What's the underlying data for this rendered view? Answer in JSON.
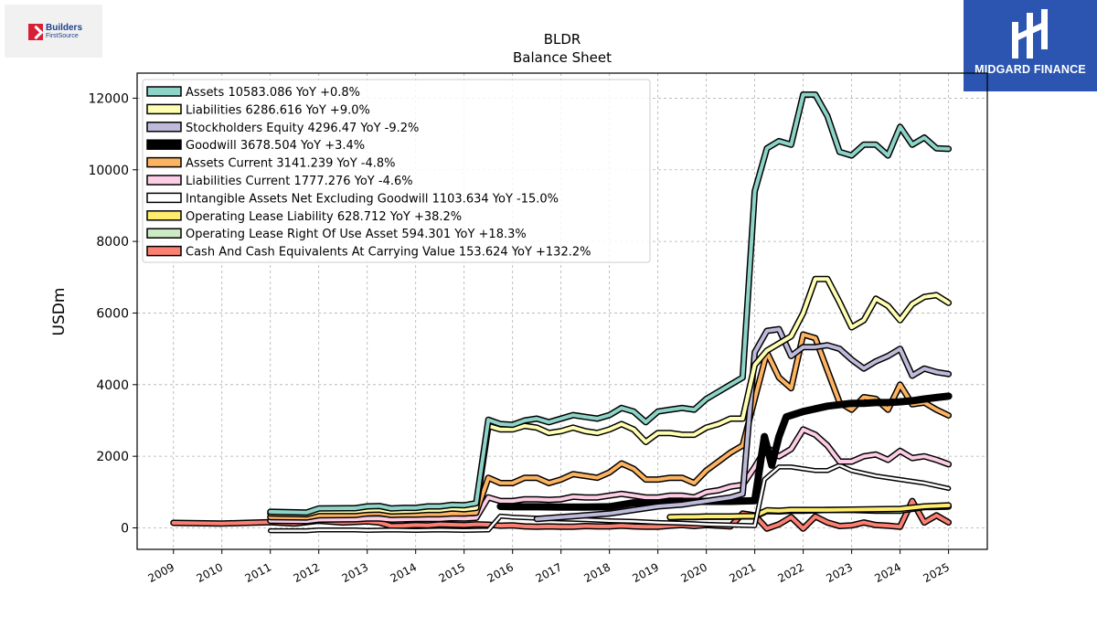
{
  "logos": {
    "left_line1": "Builders",
    "left_line2": "FirstSource",
    "right_brand": "MIDGARD FINANCE"
  },
  "chart_data": {
    "type": "line",
    "title": "BLDR",
    "subtitle": "Balance  Sheet",
    "xlabel": "",
    "ylabel": "USDm",
    "xlim": [
      2008.25,
      2025.8
    ],
    "ylim": [
      -600,
      12700
    ],
    "x_ticks": [
      "2009",
      "2010",
      "2011",
      "2012",
      "2013",
      "2014",
      "2015",
      "2016",
      "2017",
      "2018",
      "2019",
      "2020",
      "2021",
      "2022",
      "2023",
      "2024",
      "2025"
    ],
    "y_ticks": [
      "0",
      "2000",
      "4000",
      "6000",
      "8000",
      "10000",
      "12000"
    ],
    "grid": true,
    "legend_position": "top-left",
    "series": [
      {
        "name": "Assets",
        "label": "Assets  10583.086 YoY +0.8%",
        "color": "#8dd3c7",
        "width": 4,
        "x": [
          2011.0,
          2011.75,
          2012.0,
          2012.75,
          2013.0,
          2013.25,
          2013.5,
          2013.75,
          2014.0,
          2014.25,
          2014.5,
          2014.75,
          2015.0,
          2015.25,
          2015.5,
          2015.75,
          2016.0,
          2016.25,
          2016.5,
          2016.75,
          2017.0,
          2017.25,
          2017.5,
          2017.75,
          2018.0,
          2018.25,
          2018.5,
          2018.75,
          2019.0,
          2019.25,
          2019.5,
          2019.75,
          2020.0,
          2020.25,
          2020.5,
          2020.75,
          2021.0,
          2021.25,
          2021.5,
          2021.75,
          2022.0,
          2022.25,
          2022.5,
          2022.75,
          2023.0,
          2023.25,
          2023.5,
          2023.75,
          2024.0,
          2024.25,
          2024.5,
          2024.75,
          2025.0
        ],
        "values": [
          450,
          430,
          540,
          550,
          600,
          610,
          540,
          560,
          560,
          600,
          600,
          640,
          630,
          690,
          3020,
          2900,
          2880,
          3000,
          3050,
          2950,
          3050,
          3150,
          3100,
          3050,
          3150,
          3350,
          3250,
          2950,
          3250,
          3300,
          3350,
          3300,
          3600,
          3800,
          4000,
          4200,
          9400,
          10600,
          10800,
          10700,
          12100,
          12100,
          11500,
          10500,
          10400,
          10700,
          10700,
          10400,
          11200,
          10700,
          10900,
          10600,
          10583
        ]
      },
      {
        "name": "Liabilities",
        "label": "Liabilities  6286.616 YoY +9.0%",
        "color": "#ffffb3",
        "width": 4,
        "x": [
          2011.0,
          2011.75,
          2012.0,
          2012.75,
          2013.0,
          2013.25,
          2013.5,
          2013.75,
          2014.0,
          2014.25,
          2014.5,
          2014.75,
          2015.0,
          2015.25,
          2015.5,
          2015.75,
          2016.0,
          2016.25,
          2016.5,
          2016.75,
          2017.0,
          2017.25,
          2017.5,
          2017.75,
          2018.0,
          2018.25,
          2018.5,
          2018.75,
          2019.0,
          2019.25,
          2019.5,
          2019.75,
          2020.0,
          2020.25,
          2020.5,
          2020.75,
          2021.0,
          2021.25,
          2021.5,
          2021.75,
          2022.0,
          2022.25,
          2022.5,
          2022.75,
          2023.0,
          2023.25,
          2023.5,
          2023.75,
          2024.0,
          2024.25,
          2024.5,
          2024.75,
          2025.0
        ],
        "values": [
          400,
          380,
          470,
          470,
          500,
          510,
          460,
          470,
          480,
          500,
          500,
          540,
          520,
          560,
          2850,
          2750,
          2750,
          2850,
          2800,
          2650,
          2700,
          2800,
          2700,
          2650,
          2750,
          2900,
          2750,
          2400,
          2650,
          2650,
          2600,
          2600,
          2800,
          2900,
          3050,
          3050,
          4550,
          4950,
          5150,
          5350,
          6000,
          6950,
          6950,
          6300,
          5600,
          5800,
          6400,
          6200,
          5800,
          6250,
          6450,
          6500,
          6286
        ]
      },
      {
        "name": "Stockholders Equity",
        "label": "Stockholders Equity  4296.47 YoY -9.2%",
        "color": "#bebada",
        "width": 4,
        "x": [
          2016.5,
          2017.0,
          2017.5,
          2018.0,
          2018.5,
          2019.0,
          2019.5,
          2020.0,
          2020.5,
          2020.75,
          2021.0,
          2021.25,
          2021.5,
          2021.75,
          2022.0,
          2022.25,
          2022.5,
          2022.75,
          2023.0,
          2023.25,
          2023.5,
          2023.75,
          2024.0,
          2024.25,
          2024.5,
          2024.75,
          2025.0
        ],
        "values": [
          250,
          300,
          350,
          400,
          500,
          600,
          650,
          750,
          850,
          950,
          4900,
          5500,
          5550,
          4800,
          5050,
          5050,
          5100,
          5000,
          4700,
          4450,
          4650,
          4800,
          5000,
          4250,
          4450,
          4350,
          4296
        ]
      },
      {
        "name": "Goodwill",
        "label": "Goodwill  3678.504 YoY +3.4%",
        "color": "#000000",
        "width": 7,
        "x": [
          2015.75,
          2016.0,
          2016.5,
          2017.0,
          2017.5,
          2018.0,
          2018.5,
          2019.0,
          2019.5,
          2020.0,
          2020.5,
          2021.0,
          2021.2,
          2021.35,
          2021.5,
          2021.65,
          2022.0,
          2022.5,
          2023.0,
          2023.25,
          2023.5,
          2023.75,
          2024.0,
          2024.25,
          2024.5,
          2024.75,
          2025.0
        ],
        "values": [
          600,
          590,
          590,
          580,
          580,
          590,
          700,
          700,
          740,
          740,
          740,
          760,
          2550,
          1750,
          2550,
          3100,
          3250,
          3400,
          3480,
          3480,
          3500,
          3500,
          3520,
          3550,
          3600,
          3640,
          3678
        ]
      },
      {
        "name": "Assets Current",
        "label": "Assets Current  3141.239 YoY -4.8%",
        "color": "#fdb462",
        "width": 4,
        "x": [
          2011.0,
          2011.75,
          2012.0,
          2012.75,
          2013.0,
          2013.25,
          2013.5,
          2013.75,
          2014.0,
          2014.25,
          2014.5,
          2014.75,
          2015.0,
          2015.25,
          2015.5,
          2015.75,
          2016.0,
          2016.25,
          2016.5,
          2016.75,
          2017.0,
          2017.25,
          2017.5,
          2017.75,
          2018.0,
          2018.25,
          2018.5,
          2018.75,
          2019.0,
          2019.25,
          2019.5,
          2019.75,
          2020.0,
          2020.25,
          2020.5,
          2020.75,
          2021.0,
          2021.25,
          2021.5,
          2021.75,
          2022.0,
          2022.25,
          2022.5,
          2022.75,
          2023.0,
          2023.25,
          2023.5,
          2023.75,
          2024.0,
          2024.25,
          2024.5,
          2024.75,
          2025.0
        ],
        "values": [
          300,
          290,
          350,
          360,
          400,
          410,
          360,
          370,
          370,
          380,
          380,
          400,
          400,
          420,
          1400,
          1250,
          1250,
          1400,
          1400,
          1250,
          1350,
          1500,
          1450,
          1400,
          1550,
          1800,
          1650,
          1350,
          1350,
          1400,
          1400,
          1250,
          1600,
          1850,
          2100,
          2300,
          3600,
          4900,
          4200,
          3900,
          5400,
          5300,
          4400,
          3500,
          3300,
          3650,
          3600,
          3300,
          4000,
          3450,
          3500,
          3300,
          3141
        ]
      },
      {
        "name": "Liabilities Current",
        "label": "Liabilities Current  1777.276 YoY -4.6%",
        "color": "#fccde5",
        "width": 4,
        "x": [
          2011.0,
          2011.75,
          2012.0,
          2012.75,
          2013.0,
          2013.25,
          2013.5,
          2013.75,
          2014.0,
          2014.25,
          2014.5,
          2014.75,
          2015.0,
          2015.25,
          2015.5,
          2015.75,
          2016.0,
          2016.25,
          2016.5,
          2016.75,
          2017.0,
          2017.25,
          2017.5,
          2017.75,
          2018.0,
          2018.25,
          2018.5,
          2018.75,
          2019.0,
          2019.25,
          2019.5,
          2019.75,
          2020.0,
          2020.25,
          2020.5,
          2020.75,
          2021.0,
          2021.25,
          2021.5,
          2021.75,
          2022.0,
          2022.25,
          2022.5,
          2022.75,
          2023.0,
          2023.25,
          2023.5,
          2023.75,
          2024.0,
          2024.25,
          2024.5,
          2024.75,
          2025.0
        ],
        "values": [
          200,
          190,
          230,
          240,
          260,
          260,
          230,
          240,
          250,
          250,
          250,
          270,
          260,
          280,
          850,
          750,
          750,
          800,
          800,
          780,
          800,
          870,
          850,
          850,
          900,
          950,
          900,
          850,
          850,
          900,
          900,
          850,
          1000,
          1050,
          1150,
          1200,
          1700,
          2250,
          2000,
          2200,
          2750,
          2600,
          2300,
          1850,
          1850,
          2000,
          2050,
          1900,
          2150,
          1950,
          2000,
          1900,
          1777
        ]
      },
      {
        "name": "Intangible Assets Net Excluding Goodwill",
        "label": "Intangible Assets Net Excluding Goodwill  1103.634 YoY -15.0%",
        "color": "#ffffff",
        "width": 2.5,
        "x": [
          2011.0,
          2011.75,
          2012.0,
          2012.75,
          2013.0,
          2013.5,
          2014.0,
          2014.5,
          2015.0,
          2015.5,
          2015.75,
          2016.0,
          2016.5,
          2017.0,
          2017.5,
          2018.0,
          2018.5,
          2019.0,
          2019.5,
          2020.0,
          2020.5,
          2021.0,
          2021.2,
          2021.5,
          2021.75,
          2022.0,
          2022.25,
          2022.5,
          2022.75,
          2023.0,
          2023.5,
          2024.0,
          2024.5,
          2025.0
        ],
        "values": [
          -80,
          -80,
          -60,
          -60,
          -70,
          -60,
          -70,
          -60,
          -70,
          -60,
          330,
          300,
          270,
          250,
          230,
          200,
          180,
          150,
          130,
          100,
          80,
          60,
          1350,
          1700,
          1700,
          1650,
          1600,
          1600,
          1750,
          1600,
          1450,
          1350,
          1250,
          1103
        ]
      },
      {
        "name": "Operating Lease Liability",
        "label": "Operating Lease Liability  628.712 YoY +38.2%",
        "color": "#ffed6f",
        "width": 4,
        "x": [
          2019.25,
          2019.5,
          2019.75,
          2020.0,
          2020.25,
          2020.5,
          2020.75,
          2021.0,
          2021.25,
          2021.5,
          2021.75,
          2022.0,
          2022.5,
          2023.0,
          2023.5,
          2024.0,
          2024.5,
          2025.0
        ],
        "values": [
          300,
          310,
          310,
          320,
          320,
          320,
          330,
          330,
          490,
          480,
          500,
          500,
          500,
          510,
          520,
          530,
          600,
          628
        ]
      },
      {
        "name": "Operating Lease Right Of Use Asset",
        "label": "Operating Lease Right Of Use Asset  594.301 YoY +18.3%",
        "color": "#ccebc5",
        "width": 4,
        "x": [
          2019.25,
          2019.5,
          2019.75,
          2020.0,
          2020.25,
          2020.5,
          2020.75,
          2021.0,
          2021.25,
          2021.5,
          2021.75,
          2022.0,
          2022.5,
          2023.0,
          2023.5,
          2024.0,
          2024.5,
          2025.0
        ],
        "values": [
          290,
          300,
          300,
          310,
          310,
          310,
          320,
          320,
          470,
          460,
          480,
          480,
          500,
          500,
          480,
          480,
          580,
          594
        ]
      },
      {
        "name": "Cash And Cash Equivalents At Carrying Value",
        "label": "Cash And Cash Equivalents At Carrying Value  153.624 YoY +132.2%",
        "color": "#fb8072",
        "width": 4,
        "x": [
          2009.0,
          2009.5,
          2010.0,
          2010.5,
          2011.0,
          2011.5,
          2012.0,
          2012.5,
          2013.0,
          2013.25,
          2013.5,
          2013.75,
          2014.0,
          2014.25,
          2014.5,
          2014.75,
          2015.0,
          2015.25,
          2015.5,
          2015.75,
          2016.0,
          2016.25,
          2016.5,
          2016.75,
          2017.0,
          2017.25,
          2017.5,
          2017.75,
          2018.0,
          2018.25,
          2018.5,
          2018.75,
          2019.0,
          2019.25,
          2019.5,
          2019.75,
          2020.0,
          2020.25,
          2020.5,
          2020.75,
          2021.0,
          2021.25,
          2021.5,
          2021.75,
          2022.0,
          2022.25,
          2022.5,
          2022.75,
          2023.0,
          2023.25,
          2023.5,
          2023.75,
          2024.0,
          2024.25,
          2024.5,
          2024.75,
          2025.0
        ],
        "values": [
          140,
          130,
          120,
          140,
          160,
          120,
          200,
          150,
          180,
          150,
          50,
          60,
          80,
          70,
          100,
          90,
          80,
          100,
          90,
          60,
          70,
          40,
          30,
          40,
          30,
          30,
          50,
          40,
          40,
          60,
          40,
          30,
          30,
          60,
          80,
          50,
          80,
          60,
          40,
          400,
          350,
          -20,
          100,
          300,
          -20,
          320,
          150,
          50,
          70,
          150,
          80,
          60,
          30,
          750,
          150,
          350,
          153
        ]
      }
    ]
  }
}
